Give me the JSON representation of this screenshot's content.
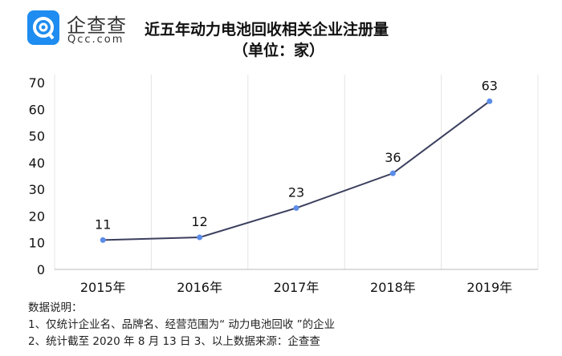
{
  "logo": {
    "brand": "企查查",
    "sub": "Qcc.com",
    "color": "#1e8cf0"
  },
  "chart_data": {
    "type": "line",
    "title": "近五年动力电池回收相关企业注册量",
    "subtitle": "（单位：家）",
    "categories": [
      "2015年",
      "2016年",
      "2017年",
      "2018年",
      "2019年"
    ],
    "values": [
      11,
      12,
      23,
      36,
      63
    ],
    "data_labels": [
      "11",
      "12",
      "23",
      "36",
      "63"
    ],
    "yticks": [
      "0",
      "10",
      "20",
      "30",
      "40",
      "50",
      "60",
      "70"
    ],
    "ylim": [
      0,
      70
    ],
    "grid": "vertical",
    "line_color": "#3b3f5e",
    "marker_color": "#5b8de8"
  },
  "notes": {
    "heading": "数据说明：",
    "line1": "1、仅统计企业名、品牌名、经营范围为“ 动力电池回收 ”的企业",
    "line2": "2、统计截至 2020 年 8 月 13 日  3、以上数据来源：企查查"
  }
}
